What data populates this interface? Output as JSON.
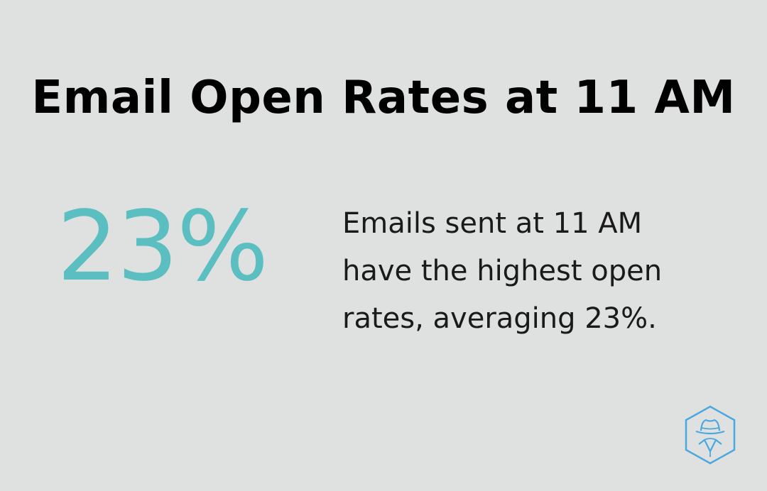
{
  "title": "Email Open Rates at 11 AM",
  "stat": {
    "value": "23%",
    "color": "#5bbfc2"
  },
  "description": {
    "lines": [
      "Emails sent at 11 AM",
      "have the highest open",
      "rates, averaging 23%."
    ]
  },
  "logo": {
    "icon": "hexagon-spy-hat-icon",
    "color": "#4aa8e0"
  },
  "background": "#dfe1e0"
}
